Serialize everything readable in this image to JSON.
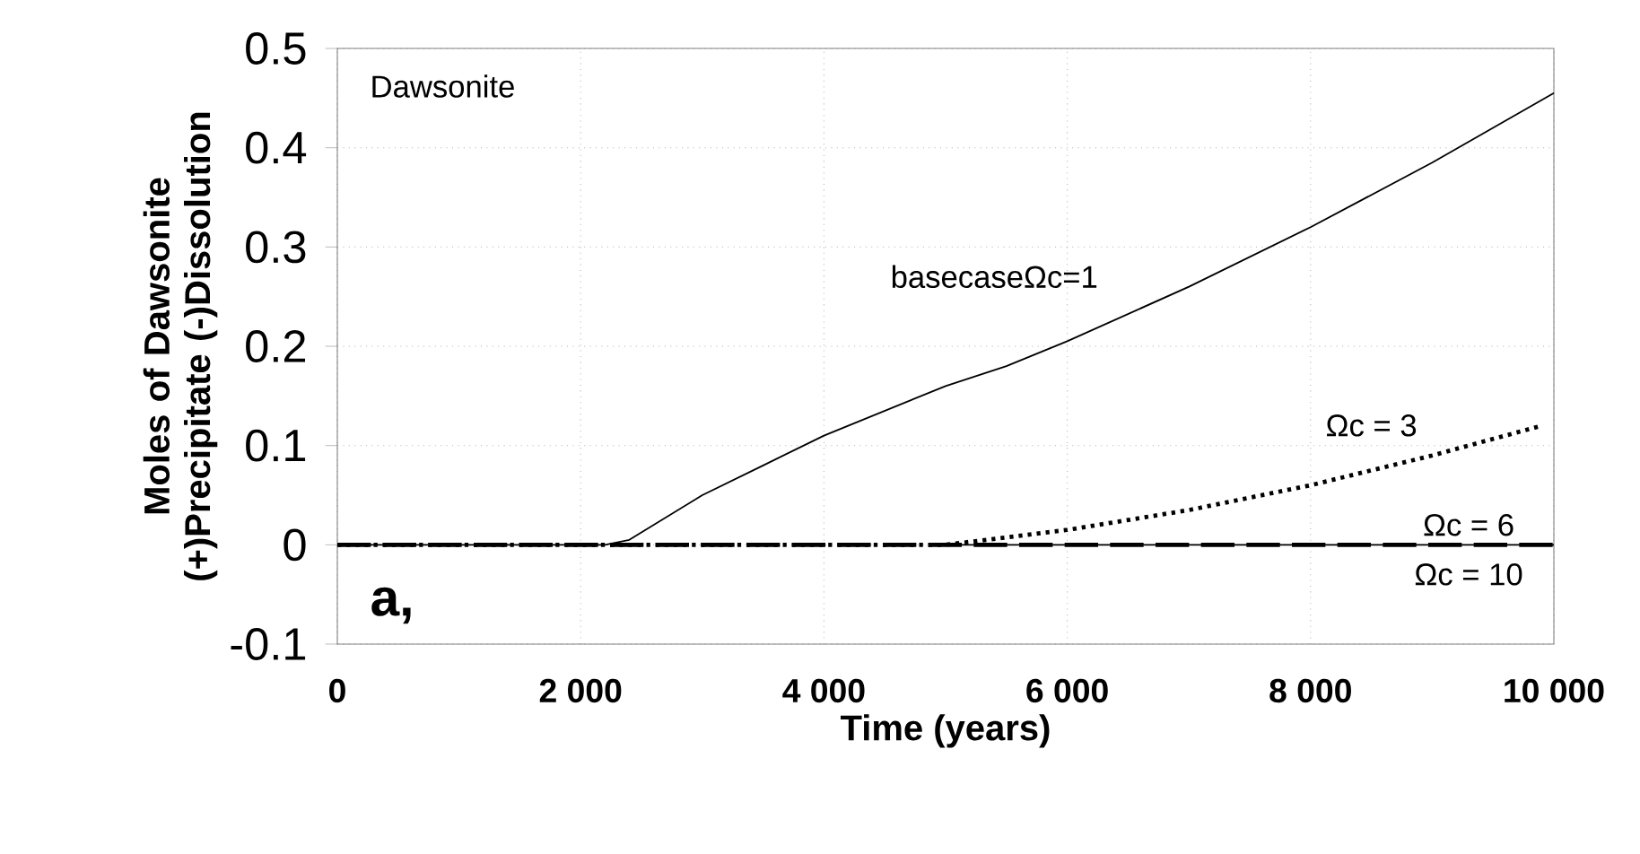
{
  "chart_data": {
    "type": "line",
    "xlabel": "Time (years)",
    "ylabel": "Moles of Dawsonite (+)Precipitate (-)Dissolution",
    "xlim": [
      0,
      10000
    ],
    "ylim": [
      -0.1,
      0.5
    ],
    "xticks": [
      0,
      {
        "value": 2000,
        "label": "2 000"
      },
      {
        "value": 4000,
        "label": "4 000"
      },
      {
        "value": 6000,
        "label": "6 000"
      },
      {
        "value": 8000,
        "label": "8 000"
      },
      {
        "value": 10000,
        "label": "10 000"
      }
    ],
    "yticks": [
      -0.1,
      0,
      0.1,
      0.2,
      0.3,
      0.4,
      0.5
    ],
    "grid": true,
    "marker": "none",
    "series": [
      {
        "name": "basecaseΩc=1",
        "color": "#000000",
        "line_style": "solid",
        "x": [
          0,
          2200,
          2400,
          3000,
          3500,
          4000,
          5000,
          5500,
          6000,
          7000,
          8000,
          9000,
          10000
        ],
        "values": [
          0,
          0,
          0.005,
          0.05,
          0.08,
          0.11,
          0.16,
          0.18,
          0.205,
          0.26,
          0.32,
          0.385,
          0.455
        ]
      },
      {
        "name": "Ωc = 3",
        "color": "#000000",
        "line_style": "dotted",
        "x": [
          0,
          5000,
          6000,
          7000,
          8000,
          9000,
          9900
        ],
        "values": [
          0,
          0,
          0.015,
          0.035,
          0.06,
          0.09,
          0.12
        ]
      },
      {
        "name": "Ωc = 6",
        "color": "#000000",
        "line_style": "dashed",
        "x": [
          0,
          10000
        ],
        "values": [
          0,
          0
        ]
      },
      {
        "name": "Ωc = 10",
        "color": "#000000",
        "line_style": "solid",
        "x": [
          5000,
          10000
        ],
        "values": [
          0,
          0
        ]
      }
    ],
    "annotations": [
      "Dawsonite",
      "a,"
    ]
  }
}
